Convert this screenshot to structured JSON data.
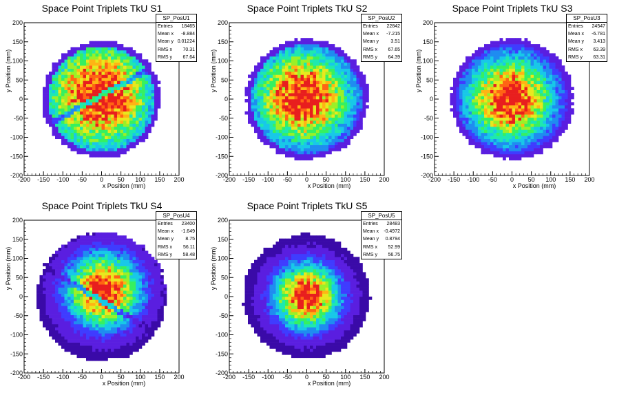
{
  "chart_data": [
    {
      "type": "heatmap",
      "title": "Space Point Triplets TkU S1",
      "xlabel": "x Position (mm)",
      "ylabel": "y Position (mm)",
      "xlim": [
        -200,
        200
      ],
      "ylim": [
        -200,
        200
      ],
      "xticks": [
        -200,
        -150,
        -100,
        -50,
        0,
        50,
        100,
        150,
        200
      ],
      "yticks": [
        -200,
        -150,
        -100,
        -50,
        0,
        50,
        100,
        150,
        200
      ],
      "stats": {
        "name": "SP_PosU1",
        "rows": [
          {
            "label": "Entries",
            "value": "18465"
          },
          {
            "label": "Mean x",
            "value": "-8.884"
          },
          {
            "label": "Mean y",
            "value": "0.01224"
          },
          {
            "label": "RMS x",
            "value": "70.31"
          },
          {
            "label": "RMS y",
            "value": "67.64"
          }
        ]
      },
      "distribution": {
        "radius": 150,
        "center_x": -5,
        "center_y": 10,
        "spread": 95,
        "band": {
          "slope": 0.55,
          "offset": 10
        },
        "seed": 11
      }
    },
    {
      "type": "heatmap",
      "title": "Space Point Triplets TkU S2",
      "xlabel": "x Position (mm)",
      "ylabel": "y Position (mm)",
      "xlim": [
        -200,
        200
      ],
      "ylim": [
        -200,
        200
      ],
      "xticks": [
        -200,
        -150,
        -100,
        -50,
        0,
        50,
        100,
        150,
        200
      ],
      "yticks": [
        -200,
        -150,
        -100,
        -50,
        0,
        50,
        100,
        150,
        200
      ],
      "stats": {
        "name": "SP_PosU2",
        "rows": [
          {
            "label": "Entries",
            "value": "22842"
          },
          {
            "label": "Mean x",
            "value": "-7.215"
          },
          {
            "label": "Mean y",
            "value": "3.51"
          },
          {
            "label": "RMS x",
            "value": "67.65"
          },
          {
            "label": "RMS y",
            "value": "64.39"
          }
        ]
      },
      "distribution": {
        "radius": 155,
        "center_x": -10,
        "center_y": 5,
        "spread": 85,
        "seed": 23
      }
    },
    {
      "type": "heatmap",
      "title": "Space Point Triplets TkU S3",
      "xlabel": "x Position (mm)",
      "ylabel": "y Position (mm)",
      "xlim": [
        -200,
        200
      ],
      "ylim": [
        -200,
        200
      ],
      "xticks": [
        -200,
        -150,
        -100,
        -50,
        0,
        50,
        100,
        150,
        200
      ],
      "yticks": [
        -200,
        -150,
        -100,
        -50,
        0,
        50,
        100,
        150,
        200
      ],
      "stats": {
        "name": "SP_PosU3",
        "rows": [
          {
            "label": "Entries",
            "value": "24547"
          },
          {
            "label": "Mean x",
            "value": "-6.781"
          },
          {
            "label": "Mean y",
            "value": "3.413"
          },
          {
            "label": "RMS x",
            "value": "63.39"
          },
          {
            "label": "RMS y",
            "value": "63.31"
          }
        ]
      },
      "distribution": {
        "radius": 155,
        "center_x": -5,
        "center_y": 0,
        "spread": 75,
        "seed": 37
      }
    },
    {
      "type": "heatmap",
      "title": "Space Point Triplets TkU S4",
      "xlabel": "x Position (mm)",
      "ylabel": "y Position (mm)",
      "xlim": [
        -200,
        200
      ],
      "ylim": [
        -200,
        200
      ],
      "xticks": [
        -200,
        -150,
        -100,
        -50,
        0,
        50,
        100,
        150,
        200
      ],
      "yticks": [
        -200,
        -150,
        -100,
        -50,
        0,
        50,
        100,
        150,
        200
      ],
      "stats": {
        "name": "SP_PosU4",
        "rows": [
          {
            "label": "Entries",
            "value": "23400"
          },
          {
            "label": "Mean x",
            "value": "-1.649"
          },
          {
            "label": "Mean y",
            "value": "8.75"
          },
          {
            "label": "RMS x",
            "value": "56.11"
          },
          {
            "label": "RMS y",
            "value": "58.48"
          }
        ]
      },
      "distribution": {
        "radius": 165,
        "center_x": 5,
        "center_y": 15,
        "spread": 62,
        "band": {
          "slope": -0.6,
          "offset": -10
        },
        "seed": 41
      }
    },
    {
      "type": "heatmap",
      "title": "Space Point Triplets TkU S5",
      "xlabel": "x Position (mm)",
      "ylabel": "y Position (mm)",
      "xlim": [
        -200,
        200
      ],
      "ylim": [
        -200,
        200
      ],
      "xticks": [
        -200,
        -150,
        -100,
        -50,
        0,
        50,
        100,
        150,
        200
      ],
      "yticks": [
        -200,
        -150,
        -100,
        -50,
        0,
        50,
        100,
        150,
        200
      ],
      "stats": {
        "name": "SP_PosU5",
        "rows": [
          {
            "label": "Entries",
            "value": "28483"
          },
          {
            "label": "Mean x",
            "value": "-0.4972"
          },
          {
            "label": "Mean y",
            "value": "0.8794"
          },
          {
            "label": "RMS x",
            "value": "52.99"
          },
          {
            "label": "RMS y",
            "value": "56.75"
          }
        ]
      },
      "distribution": {
        "radius": 160,
        "center_x": 0,
        "center_y": 0,
        "spread": 55,
        "seed": 53
      }
    }
  ],
  "palette": [
    "#3a0aa8",
    "#5a1ee0",
    "#3f3cff",
    "#1f8cf0",
    "#18c8e8",
    "#1ee8b0",
    "#36f060",
    "#9af028",
    "#e8e81e",
    "#ffb414",
    "#ff6414",
    "#e81e1e"
  ]
}
